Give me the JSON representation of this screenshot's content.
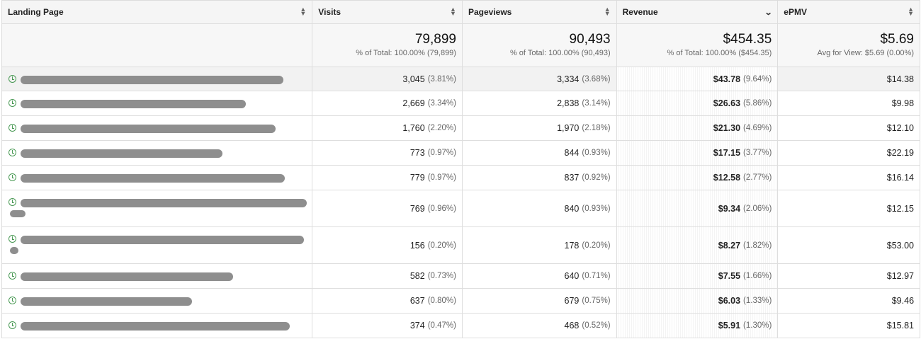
{
  "headers": {
    "landing_page": "Landing Page",
    "visits": "Visits",
    "pageviews": "Pageviews",
    "revenue": "Revenue",
    "epmv": "ePMV"
  },
  "sort": {
    "column": "revenue",
    "direction": "descending"
  },
  "totals": {
    "visits": {
      "value": "79,899",
      "sub": "% of Total: 100.00% (79,899)"
    },
    "pageviews": {
      "value": "90,493",
      "sub": "% of Total: 100.00% (90,493)"
    },
    "revenue": {
      "value": "$454.35",
      "sub": "% of Total: 100.00% ($454.35)"
    },
    "epmv": {
      "value": "$5.69",
      "sub": "Avg for View: $5.69 (0.00%)"
    }
  },
  "rows": [
    {
      "visits": "3,045",
      "visits_pct": "(3.81%)",
      "pageviews": "3,334",
      "pageviews_pct": "(3.68%)",
      "revenue": "$43.78",
      "revenue_pct": "(9.64%)",
      "epmv": "$14.38"
    },
    {
      "visits": "2,669",
      "visits_pct": "(3.34%)",
      "pageviews": "2,838",
      "pageviews_pct": "(3.14%)",
      "revenue": "$26.63",
      "revenue_pct": "(5.86%)",
      "epmv": "$9.98"
    },
    {
      "visits": "1,760",
      "visits_pct": "(2.20%)",
      "pageviews": "1,970",
      "pageviews_pct": "(2.18%)",
      "revenue": "$21.30",
      "revenue_pct": "(4.69%)",
      "epmv": "$12.10"
    },
    {
      "visits": "773",
      "visits_pct": "(0.97%)",
      "pageviews": "844",
      "pageviews_pct": "(0.93%)",
      "revenue": "$17.15",
      "revenue_pct": "(3.77%)",
      "epmv": "$22.19"
    },
    {
      "visits": "779",
      "visits_pct": "(0.97%)",
      "pageviews": "837",
      "pageviews_pct": "(0.92%)",
      "revenue": "$12.58",
      "revenue_pct": "(2.77%)",
      "epmv": "$16.14"
    },
    {
      "visits": "769",
      "visits_pct": "(0.96%)",
      "pageviews": "840",
      "pageviews_pct": "(0.93%)",
      "revenue": "$9.34",
      "revenue_pct": "(2.06%)",
      "epmv": "$12.15"
    },
    {
      "visits": "156",
      "visits_pct": "(0.20%)",
      "pageviews": "178",
      "pageviews_pct": "(0.20%)",
      "revenue": "$8.27",
      "revenue_pct": "(1.82%)",
      "epmv": "$53.00"
    },
    {
      "visits": "582",
      "visits_pct": "(0.73%)",
      "pageviews": "640",
      "pageviews_pct": "(0.71%)",
      "revenue": "$7.55",
      "revenue_pct": "(1.66%)",
      "epmv": "$12.97"
    },
    {
      "visits": "637",
      "visits_pct": "(0.80%)",
      "pageviews": "679",
      "pageviews_pct": "(0.75%)",
      "revenue": "$6.03",
      "revenue_pct": "(1.33%)",
      "epmv": "$9.46"
    },
    {
      "visits": "374",
      "visits_pct": "(0.47%)",
      "pageviews": "468",
      "pageviews_pct": "(0.52%)",
      "revenue": "$5.91",
      "revenue_pct": "(1.30%)",
      "epmv": "$15.81"
    }
  ],
  "icons": {
    "row_icon": "clock-icon",
    "sort_icon": "sort-updown-icon",
    "active_sort_icon": "chevron-down-icon"
  },
  "colors": {
    "icon_green": "#4a9a55",
    "redaction_gray": "#8e8e8e",
    "header_bg": "#f5f5f5"
  }
}
